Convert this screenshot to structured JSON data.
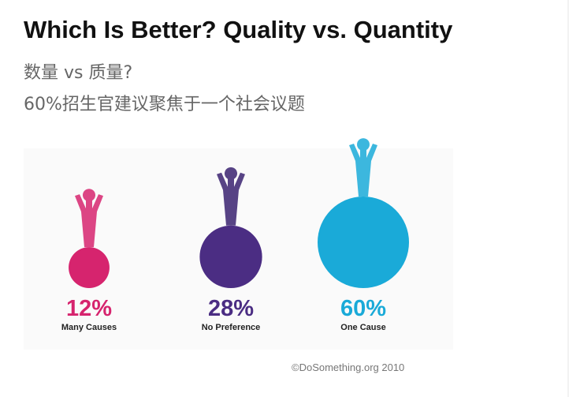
{
  "chart_data": {
    "type": "bubble",
    "title": "Which Is Better? Quality vs. Quantity",
    "subtitle": "数量 vs 质量?",
    "annotation": "60%招生官建议聚焦于一个社会议题",
    "categories": [
      "Many Causes",
      "No Preference",
      "One Cause"
    ],
    "values": [
      12,
      28,
      60
    ],
    "value_labels": [
      "12%",
      "28%",
      "60%"
    ],
    "colors": [
      "#d6246e",
      "#4b2d83",
      "#1aaad8"
    ],
    "source": "©DoSomething.org 2010"
  }
}
